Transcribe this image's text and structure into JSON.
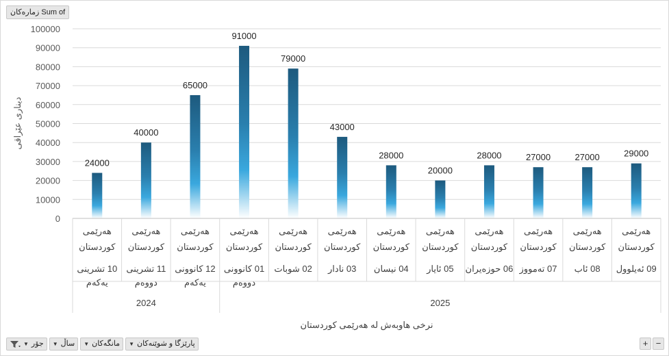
{
  "value_field_button": "Sum of زمارەکان",
  "footer_buttons": [
    {
      "label": "جۆر",
      "kind": "filter"
    },
    {
      "label": "ساڵ"
    },
    {
      "label": "مانگەکان"
    },
    {
      "label": "پارێزگا و شوێنەکان"
    }
  ],
  "zoom": {
    "plus": "+",
    "minus": "−"
  },
  "bar_colors": {
    "top": "#1d5a7e",
    "mid": "#3aa8de",
    "bottom": "#ffffff"
  },
  "chart_data": {
    "type": "bar",
    "ylabel": "دیناری عێراقی",
    "xlabel": "نرخی هاوبەش لە هەرێمی کوردستان",
    "ylim": [
      0,
      100000
    ],
    "yticks": [
      "100000",
      "90000",
      "80000",
      "70000",
      "60000",
      "50000",
      "40000",
      "30000",
      "20000",
      "10000",
      "0"
    ],
    "region_label": [
      "هەرێمی",
      "کوردستان"
    ],
    "categories": [
      {
        "month": [
          "10 تشرینی",
          "یەکەم"
        ],
        "value": 24000,
        "label": "24000"
      },
      {
        "month": [
          "11 تشرینی",
          "دووەم"
        ],
        "value": 40000,
        "label": "40000"
      },
      {
        "month": [
          "12 کانوونی",
          "یەکەم"
        ],
        "value": 65000,
        "label": "65000"
      },
      {
        "month": [
          "01 کانوونی",
          "دووەم"
        ],
        "value": 91000,
        "label": "91000"
      },
      {
        "month": [
          "02 شوبات"
        ],
        "value": 79000,
        "label": "79000"
      },
      {
        "month": [
          "03 نادار"
        ],
        "value": 43000,
        "label": "43000"
      },
      {
        "month": [
          "04 نیسان"
        ],
        "value": 28000,
        "label": "28000"
      },
      {
        "month": [
          "05 ئایار"
        ],
        "value": 20000,
        "label": "20000"
      },
      {
        "month": [
          "06 حوزەیران"
        ],
        "value": 28000,
        "label": "28000"
      },
      {
        "month": [
          "07 تەمووز"
        ],
        "value": 27000,
        "label": "27000"
      },
      {
        "month": [
          "08 ئاب"
        ],
        "value": 27000,
        "label": "27000"
      },
      {
        "month": [
          "09 ئەیلوول"
        ],
        "value": 29000,
        "label": "29000"
      }
    ],
    "years": [
      {
        "label": "2024",
        "from": 0,
        "to": 2
      },
      {
        "label": "2025",
        "from": 3,
        "to": 11
      }
    ],
    "grid": true,
    "legend": "none"
  }
}
